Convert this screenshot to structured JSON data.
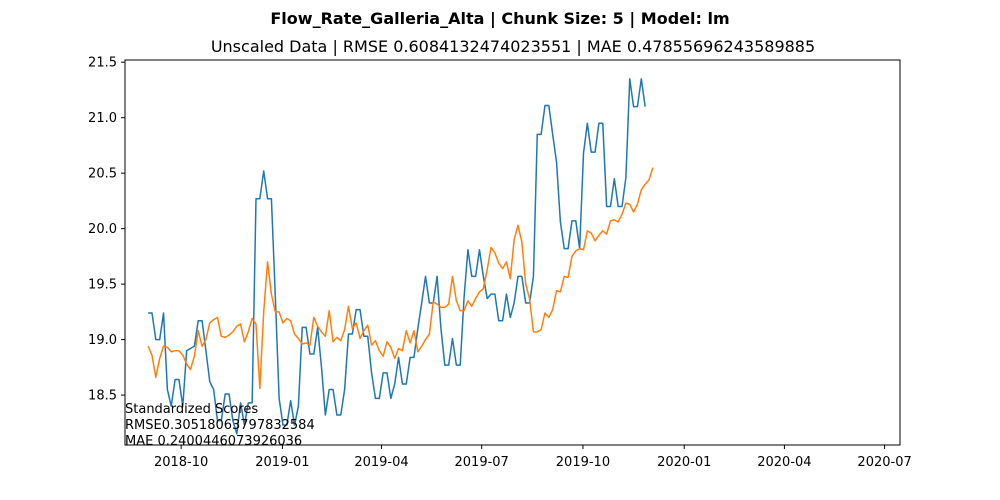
{
  "chart_data": {
    "type": "line",
    "title": "Flow_Rate_Galleria_Alta | Chunk Size: 5 | Model: lm",
    "subtitle": "Unscaled Data | RMSE 0.6084132474023551 | MAE 0.47855696243589885",
    "xlabel": "",
    "ylabel": "",
    "x_start": "2018-09-01",
    "x_step_days": 3.5,
    "xlim": [
      "2018-08-11",
      "2020-07-15"
    ],
    "ylim": [
      18.05,
      21.52
    ],
    "x_ticks": [
      "2018-10",
      "2019-01",
      "2019-04",
      "2019-07",
      "2019-10",
      "2020-01",
      "2020-04",
      "2020-07"
    ],
    "x_tick_dates": [
      "2018-10-01",
      "2019-01-01",
      "2019-04-01",
      "2019-07-01",
      "2019-10-01",
      "2020-01-01",
      "2020-04-01",
      "2020-07-01"
    ],
    "y_ticks": [
      "18.5",
      "19.0",
      "19.5",
      "20.0",
      "20.5",
      "21.0",
      "21.5"
    ],
    "y_tick_values": [
      18.5,
      19.0,
      19.5,
      20.0,
      20.5,
      21.0,
      21.5
    ],
    "grid": false,
    "legend": "none",
    "series": [
      {
        "color": "#1f77b4",
        "values": [
          19.24,
          19.24,
          19.0,
          19.0,
          19.24,
          18.55,
          18.4,
          18.64,
          18.64,
          18.4,
          18.9,
          18.92,
          18.94,
          19.17,
          19.17,
          18.9,
          18.62,
          18.55,
          18.27,
          18.27,
          18.51,
          18.51,
          18.27,
          18.15,
          18.43,
          18.23,
          18.43,
          18.43,
          20.27,
          20.27,
          20.52,
          20.27,
          20.27,
          19.4,
          18.47,
          18.23,
          18.23,
          18.45,
          18.23,
          18.4,
          19.11,
          19.11,
          18.87,
          18.87,
          19.11,
          18.75,
          18.32,
          18.55,
          18.55,
          18.32,
          18.32,
          18.55,
          19.05,
          19.05,
          19.27,
          19.27,
          19.03,
          19.03,
          18.7,
          18.47,
          18.47,
          18.7,
          18.7,
          18.47,
          18.6,
          18.84,
          18.6,
          18.6,
          18.84,
          18.84,
          19.1,
          19.33,
          19.57,
          19.33,
          19.33,
          19.57,
          19.1,
          18.77,
          18.77,
          19.01,
          18.77,
          18.77,
          19.38,
          19.81,
          19.57,
          19.57,
          19.81,
          19.57,
          19.37,
          19.41,
          19.41,
          19.17,
          19.17,
          19.41,
          19.2,
          19.33,
          19.57,
          19.57,
          19.33,
          19.33,
          19.57,
          20.85,
          20.85,
          21.11,
          21.11,
          20.85,
          20.6,
          20.06,
          19.82,
          19.82,
          20.07,
          20.07,
          19.82,
          20.68,
          20.95,
          20.69,
          20.69,
          20.95,
          20.95,
          20.2,
          20.2,
          20.45,
          20.2,
          20.2,
          20.46,
          21.35,
          21.1,
          21.1,
          21.35,
          21.1
        ]
      },
      {
        "color": "#ff7f0e",
        "values": [
          18.94,
          18.86,
          18.66,
          18.83,
          18.94,
          18.93,
          18.89,
          18.9,
          18.9,
          18.86,
          18.78,
          18.73,
          18.85,
          19.08,
          18.94,
          19.0,
          19.15,
          19.18,
          19.2,
          19.03,
          19.02,
          19.04,
          19.07,
          19.12,
          19.14,
          18.98,
          19.07,
          19.19,
          19.14,
          18.56,
          19.25,
          19.7,
          19.41,
          19.25,
          19.25,
          19.15,
          19.19,
          19.17,
          19.05,
          19.01,
          18.96,
          18.97,
          18.95,
          19.2,
          19.12,
          19.07,
          19.03,
          19.26,
          18.98,
          19.02,
          18.99,
          19.09,
          19.3,
          19.1,
          19.15,
          19.01,
          19.08,
          19.13,
          18.95,
          18.99,
          18.9,
          18.85,
          18.98,
          18.93,
          18.83,
          18.92,
          18.9,
          19.08,
          18.97,
          19.08,
          18.89,
          18.94,
          19.0,
          19.05,
          19.34,
          19.32,
          19.29,
          19.29,
          19.32,
          19.57,
          19.35,
          19.26,
          19.26,
          19.35,
          19.3,
          19.37,
          19.43,
          19.46,
          19.63,
          19.83,
          19.78,
          19.69,
          19.64,
          19.7,
          19.55,
          19.9,
          20.03,
          19.88,
          19.5,
          19.37,
          19.07,
          19.07,
          19.09,
          19.24,
          19.2,
          19.27,
          19.44,
          19.43,
          19.57,
          19.56,
          19.75,
          19.8,
          19.82,
          19.81,
          19.98,
          19.96,
          19.89,
          19.94,
          19.98,
          19.95,
          20.07,
          20.08,
          20.06,
          20.13,
          20.23,
          20.22,
          20.15,
          20.22,
          20.35,
          20.4,
          20.44,
          20.55
        ]
      }
    ],
    "annotation": [
      "Standardized Scores",
      "RMSE0.30518063797832584",
      "MAE 0.2400446073926036"
    ]
  }
}
